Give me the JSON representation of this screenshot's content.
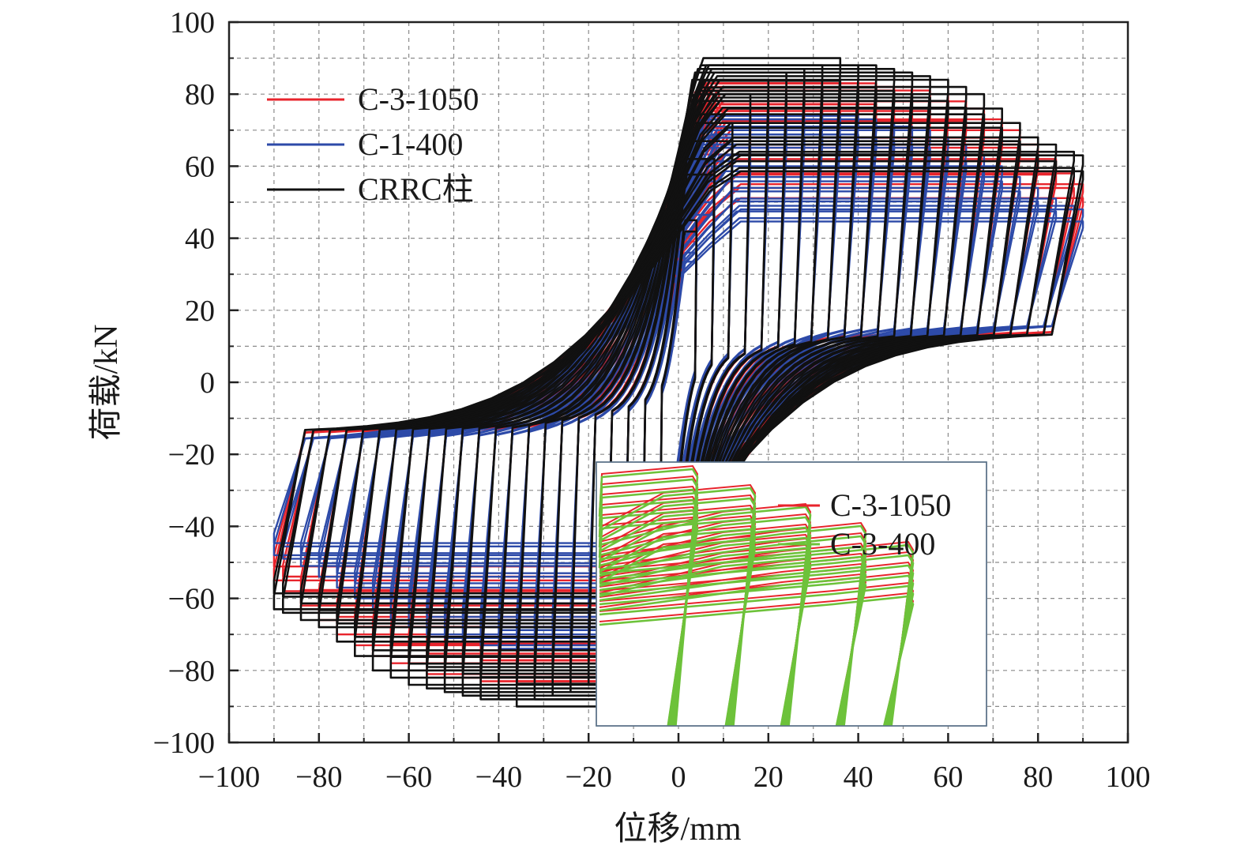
{
  "chart_data": {
    "type": "line",
    "xlabel": "位移/mm",
    "ylabel": "荷载/kN",
    "xlim": [
      -100,
      100
    ],
    "ylim": [
      -100,
      100
    ],
    "x_ticks": [
      -100,
      -80,
      -60,
      -40,
      -20,
      0,
      20,
      40,
      60,
      80,
      100
    ],
    "y_ticks": [
      -100,
      -80,
      -60,
      -40,
      -20,
      0,
      20,
      40,
      60,
      80,
      100
    ],
    "x_tick_labels": [
      "−100",
      "−80",
      "−60",
      "−40",
      "−20",
      "0",
      "20",
      "40",
      "60",
      "80",
      "100"
    ],
    "y_tick_labels": [
      "−100",
      "−80",
      "−60",
      "−40",
      "−20",
      "0",
      "20",
      "40",
      "60",
      "80",
      "100"
    ],
    "grid": true,
    "legend_position": "top-left",
    "series": [
      {
        "name": "C-3-1050",
        "color": "#e8242c",
        "amplitudes": [
          4,
          8,
          12,
          16,
          20,
          24,
          28,
          32,
          36,
          40,
          44,
          48,
          52,
          56,
          60,
          64,
          68,
          72,
          76,
          80,
          84,
          88,
          90
        ],
        "peak_loads": [
          42,
          58,
          68,
          76,
          80,
          81,
          82,
          83,
          83,
          83,
          83,
          82,
          82,
          81,
          80,
          78,
          76,
          73,
          70,
          66,
          62,
          58,
          55
        ]
      },
      {
        "name": "C-1-400",
        "color": "#2d4aa8",
        "amplitudes": [
          4,
          8,
          12,
          16,
          20,
          24,
          28,
          32,
          36,
          40,
          44,
          48,
          52,
          56,
          60,
          64,
          68,
          72,
          76,
          80,
          84,
          88,
          90
        ],
        "peak_loads": [
          36,
          50,
          60,
          66,
          70,
          72,
          73,
          74,
          74,
          74,
          73,
          72,
          71,
          70,
          68,
          66,
          63,
          60,
          57,
          54,
          51,
          49,
          48
        ]
      },
      {
        "name": "CRRC柱",
        "color": "#111111",
        "amplitudes": [
          4,
          8,
          12,
          16,
          20,
          24,
          28,
          32,
          36,
          40,
          44,
          48,
          52,
          56,
          60,
          64,
          68,
          72,
          76,
          80,
          84,
          88,
          90
        ],
        "peak_loads": [
          45,
          62,
          72,
          80,
          84,
          86,
          87,
          88,
          90,
          88,
          88,
          87,
          86,
          85,
          84,
          82,
          80,
          76,
          72,
          68,
          66,
          64,
          63
        ]
      }
    ],
    "inset": {
      "series": [
        {
          "name": "C-3-1050",
          "color": "#e8242c"
        },
        {
          "name": "C-3-400",
          "color": "#6dc23a"
        }
      ]
    }
  }
}
